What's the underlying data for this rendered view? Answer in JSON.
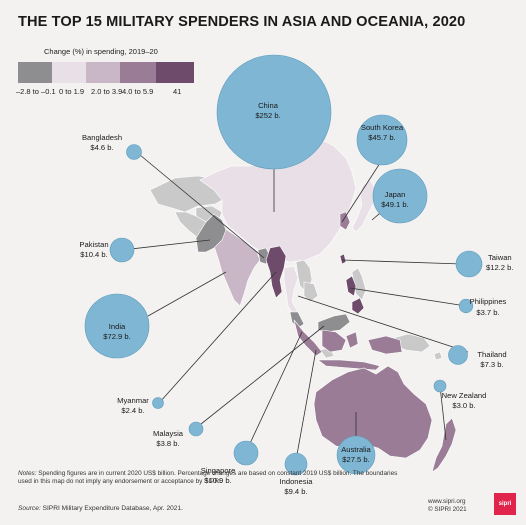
{
  "title": "THE TOP 15 MILITARY SPENDERS IN ASIA AND OCEANIA, 2020",
  "legend": {
    "title": "Change (%) in spending, 2019–20",
    "bins": [
      {
        "label": "–2.8 to –0.1",
        "color": "#8e8e90"
      },
      {
        "label": "0 to 1.9",
        "color": "#e8dfe7"
      },
      {
        "label": "2.0 to 3.9",
        "color": "#c9b6c7"
      },
      {
        "label": "4.0 to 5.9",
        "color": "#9b7c97"
      },
      {
        "label": "41",
        "color": "#6e4b6a"
      }
    ]
  },
  "colors": {
    "bubble": "#7fb6d3",
    "bubble_stroke": "#5d9cbd",
    "land_other": "#c9c9c9",
    "leader": "#333333",
    "background": "#f4f2f0"
  },
  "countries": [
    {
      "id": "china",
      "name": "China",
      "value": "$252 b."
    },
    {
      "id": "india",
      "name": "India",
      "value": "$72.9 b."
    },
    {
      "id": "japan",
      "name": "Japan",
      "value": "$49.1 b."
    },
    {
      "id": "south-korea",
      "name": "South Korea",
      "value": "$45.7 b."
    },
    {
      "id": "australia",
      "name": "Australia",
      "value": "$27.5 b."
    },
    {
      "id": "taiwan",
      "name": "Taiwan",
      "value": "$12.2 b."
    },
    {
      "id": "singapore",
      "name": "Singapore",
      "value": "$10.9 b."
    },
    {
      "id": "pakistan",
      "name": "Pakistan",
      "value": "$10.4 b."
    },
    {
      "id": "indonesia",
      "name": "Indonesia",
      "value": "$9.4 b."
    },
    {
      "id": "thailand",
      "name": "Thailand",
      "value": "$7.3 b."
    },
    {
      "id": "bangladesh",
      "name": "Bangladesh",
      "value": "$4.6 b."
    },
    {
      "id": "malaysia",
      "name": "Malaysia",
      "value": "$3.8 b."
    },
    {
      "id": "philippines",
      "name": "Philippines",
      "value": "$3.7 b."
    },
    {
      "id": "new-zealand",
      "name": "New Zealand",
      "value": "$3.0 b."
    },
    {
      "id": "myanmar",
      "name": "Myanmar",
      "value": "$2.4 b."
    }
  ],
  "notes": {
    "label": "Notes:",
    "text": "Spending figures are in current 2020 US$ billion. Percentage changes are based on constant 2019 US$ billion. The boundaries used in this map do not imply any endorsement or acceptance by SIPRI."
  },
  "source": {
    "label": "Source:",
    "text": "SIPRI Military Expenditure Database, Apr. 2021."
  },
  "credit": {
    "url": "www.sipri.org",
    "copyright": "© SIPRI 2021",
    "logo": "sipri"
  }
}
